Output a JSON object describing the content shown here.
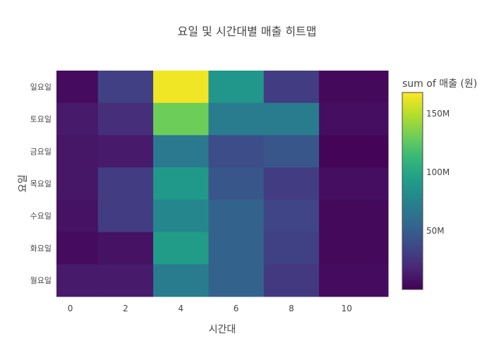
{
  "chart_data": {
    "type": "heatmap",
    "title": "요일 및 시간대별 매출 히트맵",
    "xlabel": "시간대",
    "ylabel": "요일",
    "x": [
      0,
      2,
      4,
      6,
      8,
      10
    ],
    "x_tick_labels": [
      "0",
      "2",
      "4",
      "6",
      "8",
      "10"
    ],
    "y": [
      "일요일",
      "토요일",
      "금요일",
      "목요일",
      "수요일",
      "화요일",
      "월요일"
    ],
    "z": [
      [
        5,
        32,
        165,
        88,
        30,
        4
      ],
      [
        12,
        22,
        130,
        70,
        70,
        6
      ],
      [
        10,
        12,
        68,
        40,
        45,
        2
      ],
      [
        10,
        30,
        90,
        45,
        30,
        6
      ],
      [
        8,
        30,
        78,
        53,
        35,
        4
      ],
      [
        5,
        8,
        92,
        53,
        33,
        4
      ],
      [
        12,
        12,
        70,
        53,
        28,
        5
      ]
    ],
    "colorscale": "Viridis",
    "zmin": 0,
    "zmax": 168,
    "colorbar": {
      "title": "sum of 매출 (원)",
      "tickvals": [
        50,
        100,
        150
      ],
      "ticktext": [
        "50M",
        "100M",
        "150M"
      ]
    },
    "x_range": [
      -0.5,
      11.5
    ]
  }
}
